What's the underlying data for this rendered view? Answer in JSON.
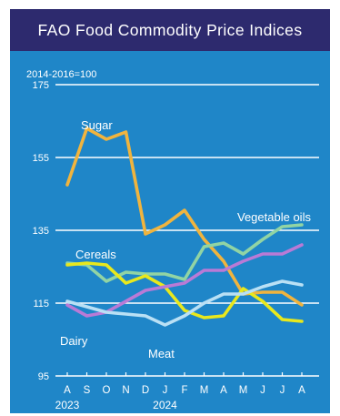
{
  "title": "FAO Food Commodity Price Indices",
  "chart_data": {
    "type": "line",
    "unit_note": "2014-2016=100",
    "categories": [
      "A",
      "S",
      "O",
      "N",
      "D",
      "J",
      "F",
      "M",
      "A",
      "M",
      "J",
      "J",
      "A"
    ],
    "year_labels": [
      {
        "label": "2023",
        "index": 0
      },
      {
        "label": "2024",
        "index": 5
      }
    ],
    "yticks": [
      95,
      115,
      135,
      155,
      175
    ],
    "ylim": [
      95,
      175
    ],
    "grid": true,
    "series": [
      {
        "name": "Sugar",
        "color": "#f0b43e",
        "values": [
          147.5,
          163,
          160,
          162,
          134,
          136.5,
          140.5,
          132.5,
          126.5,
          117.5,
          118,
          118,
          114.5
        ]
      },
      {
        "name": "Vegetable oils",
        "color": "#91d4a4",
        "values": [
          126,
          125.5,
          121,
          123.5,
          123,
          123,
          121.5,
          130.5,
          131.5,
          128.5,
          132.5,
          136,
          136.5
        ]
      },
      {
        "name": "Cereals",
        "color": "#e8e81d",
        "values": [
          125.5,
          126,
          125.5,
          120.5,
          122.5,
          119.5,
          113,
          111,
          111.5,
          119,
          115.5,
          110.5,
          110
        ]
      },
      {
        "name": "Meat",
        "color": "#b97ad6",
        "values": [
          114.5,
          111.5,
          112.5,
          115.5,
          118.5,
          119.5,
          120.5,
          124,
          124,
          126.5,
          128.5,
          128.5,
          131
        ]
      },
      {
        "name": "Dairy",
        "color": "#b9e0f5",
        "values": [
          115.5,
          114,
          112.5,
          112,
          111.5,
          109,
          111.5,
          115,
          117.5,
          117.5,
          119.5,
          121,
          120
        ]
      }
    ],
    "labels": [
      {
        "text": "Sugar",
        "series": "Sugar",
        "color": "#ffffff"
      },
      {
        "text": "Vegetable oils",
        "series": "Vegetable oils",
        "color": "#ffffff"
      },
      {
        "text": "Cereals",
        "series": "Cereals",
        "color": "#ffffff"
      },
      {
        "text": "Dairy",
        "series": "Dairy",
        "color": "#ffffff"
      },
      {
        "text": "Meat",
        "series": "Meat",
        "color": "#ffffff"
      }
    ]
  }
}
